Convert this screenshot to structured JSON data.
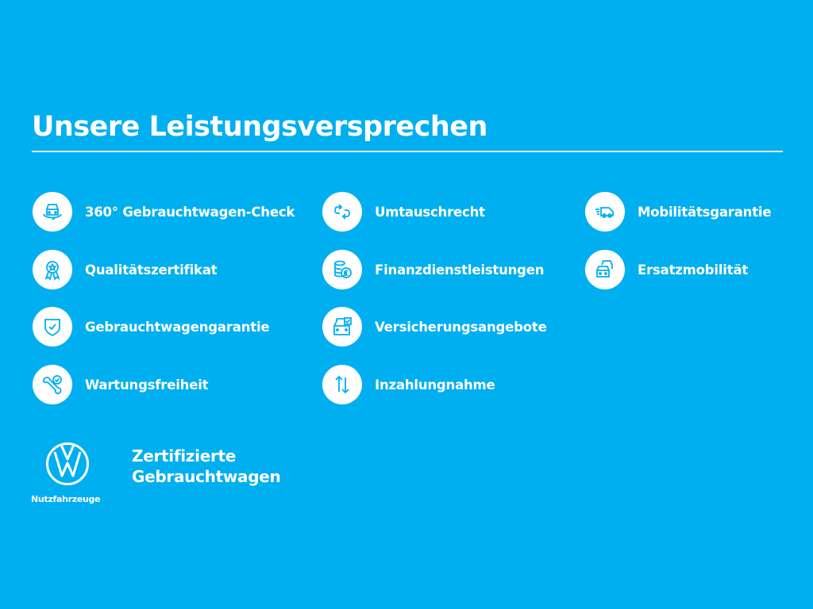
{
  "title": "Unsere Leistungsversprechen",
  "colors": {
    "background": "#00afef",
    "icon": "#00afef",
    "text": "#ffffff"
  },
  "items": [
    {
      "label": "360° Gebrauchtwagen-Check",
      "icon": "car-360-icon"
    },
    {
      "label": "Qualitätszertifikat",
      "icon": "award-ribbon-icon"
    },
    {
      "label": "Gebrauchtwagengarantie",
      "icon": "shield-check-icon"
    },
    {
      "label": "Wartungsfreiheit",
      "icon": "wrench-check-icon"
    },
    {
      "label": "Umtauschrecht",
      "icon": "exchange-arrows-icon"
    },
    {
      "label": "Finanzdienstleistungen",
      "icon": "coins-euro-icon"
    },
    {
      "label": "Versicherungsangebote",
      "icon": "car-document-icon"
    },
    {
      "label": "Inzahlungnahme",
      "icon": "up-down-arrows-icon"
    },
    {
      "label": "Mobilitätsgarantie",
      "icon": "van-speed-icon"
    },
    {
      "label": "Ersatzmobilität",
      "icon": "cars-stack-icon"
    }
  ],
  "brand": {
    "sub": "Nutzfahrzeuge",
    "logo": "VW"
  },
  "tagline": {
    "line1": "Zertifizierte",
    "line2": "Gebrauchtwagen"
  }
}
